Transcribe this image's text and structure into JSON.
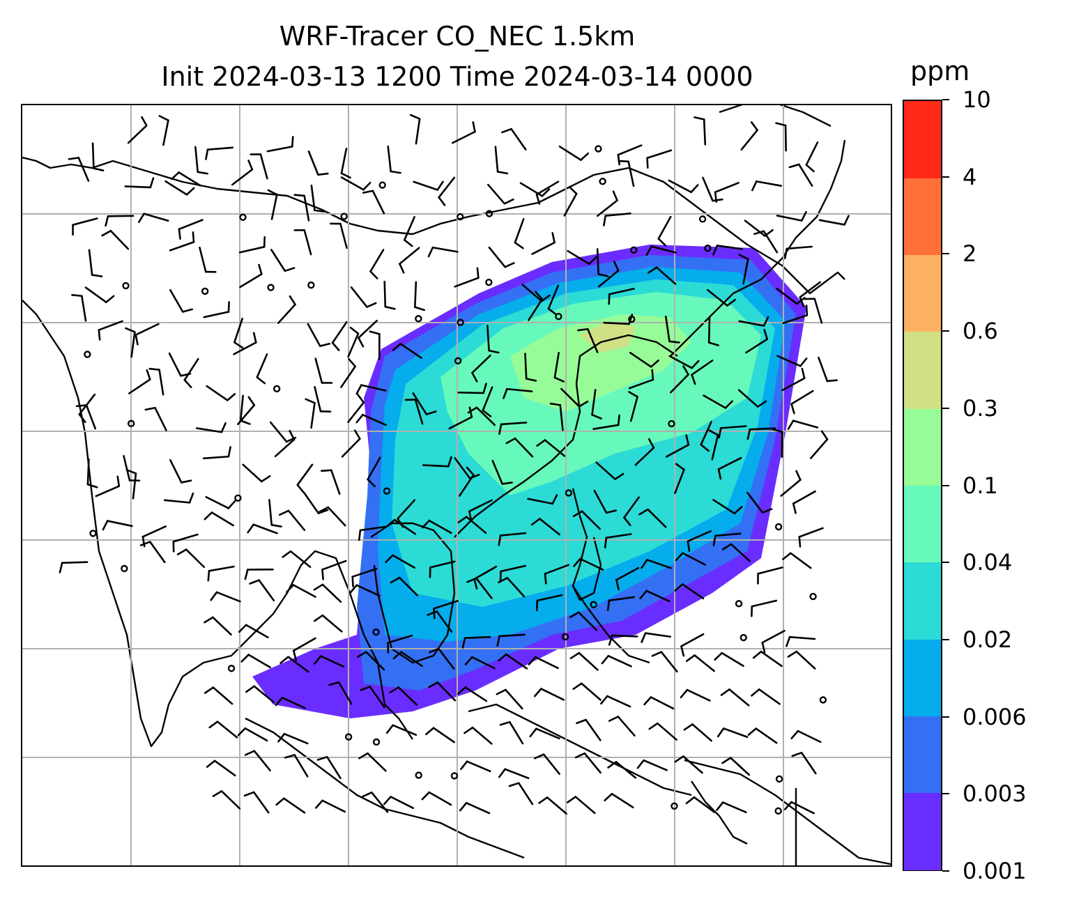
{
  "chart_data": {
    "type": "heatmap",
    "title": "WRF-Tracer CO_NEC 1.5km",
    "subtitle": "Init 2024-03-13 1200 Time 2024-03-14 0000",
    "colorbar": {
      "unit_label": "ppm",
      "levels": [
        "0.001",
        "0.003",
        "0.006",
        "0.02",
        "0.04",
        "0.1",
        "0.3",
        "0.6",
        "2",
        "4",
        "10"
      ],
      "colors": [
        "#6a2dff",
        "#3470f4",
        "#05adec",
        "#2cdbd5",
        "#67f9bc",
        "#97fc98",
        "#d0e084",
        "#fbb062",
        "#ff7039",
        "#ff2a18"
      ]
    },
    "map": {
      "gridlines": true,
      "coastlines": true,
      "wind_barbs": true
    }
  }
}
